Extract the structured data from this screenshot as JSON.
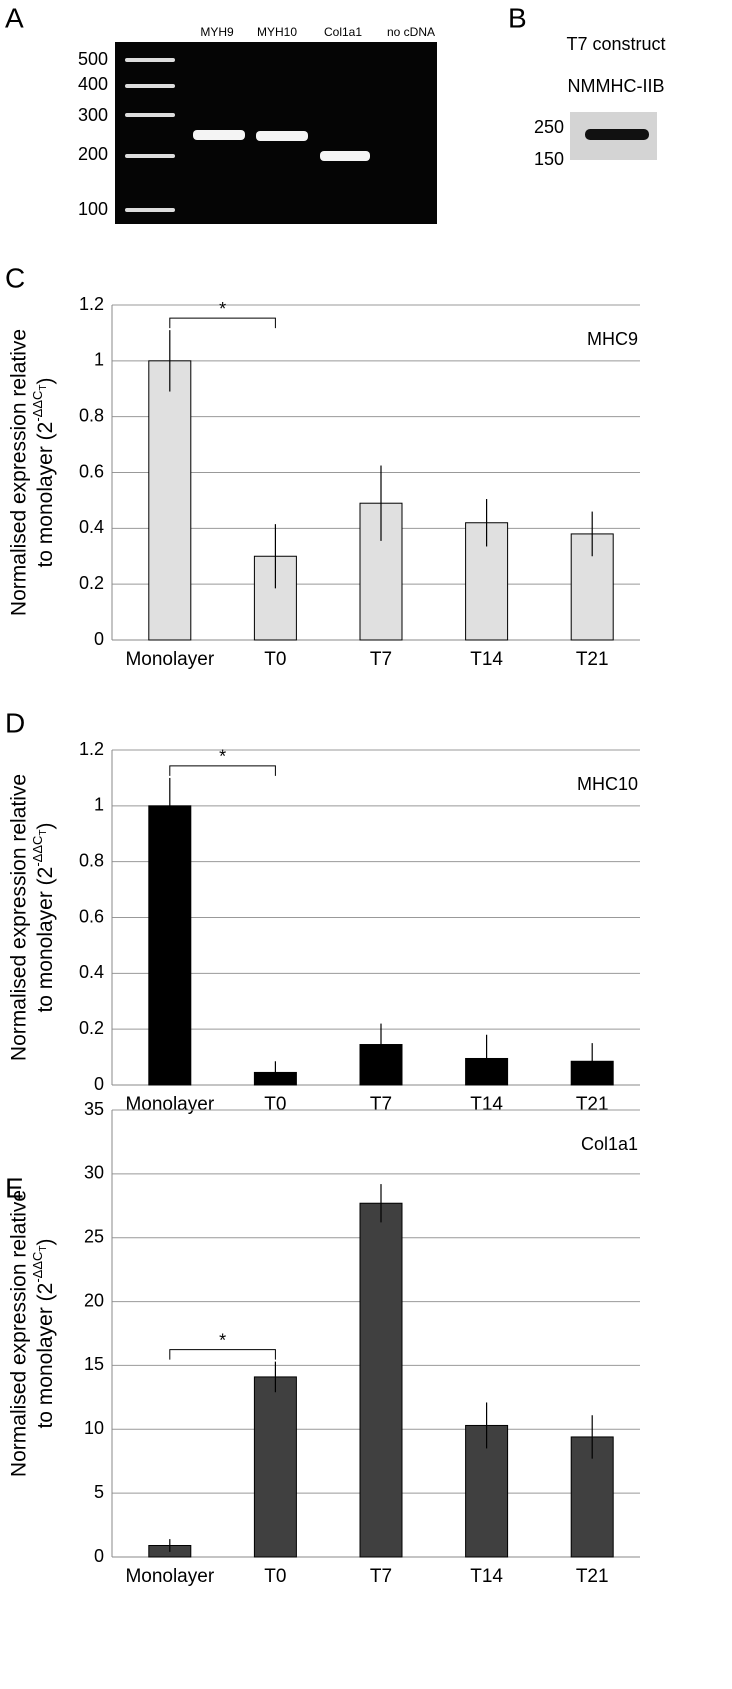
{
  "gels": {
    "a": {
      "panel_label": "A",
      "lanes": [
        "MYH9",
        "MYH10",
        "Col1a1",
        "no cDNA"
      ],
      "ladder": [
        500,
        400,
        300,
        200,
        100
      ]
    },
    "b": {
      "panel_label": "B",
      "title": "T7 construct",
      "protein": "NMMHC-IIB",
      "markers": [
        250,
        150
      ]
    }
  },
  "chart_data": [
    {
      "type": "bar",
      "panel_label": "C",
      "annotation": "MHC9",
      "significance": "*",
      "y_label": "Normalised expression relative",
      "y_label_2": "to monolayer (2",
      "y_label_sup": "-ΔΔC",
      "y_label_sub": "T",
      "y_label_end": ")",
      "categories": [
        "Monolayer",
        "T0",
        "T7",
        "T14",
        "T21"
      ],
      "values": [
        1,
        0.3,
        0.49,
        0.42,
        0.38
      ],
      "errors": [
        0.11,
        0.115,
        0.135,
        0.085,
        0.08
      ],
      "color": "#e0e0e0",
      "ylim": [
        0,
        1.2
      ],
      "yticks": [
        0,
        0.2,
        0.4,
        0.6,
        0.8,
        1,
        1.2
      ],
      "grid": true
    },
    {
      "type": "bar",
      "panel_label": "D",
      "annotation": "MHC10",
      "significance": "*",
      "y_label": "Normalised expression relative",
      "y_label_2": "to monolayer (2",
      "y_label_sup": "-ΔΔC",
      "y_label_sub": "T",
      "y_label_end": ")",
      "categories": [
        "Monolayer",
        "T0",
        "T7",
        "T14",
        "T21"
      ],
      "values": [
        1,
        0.045,
        0.145,
        0.095,
        0.085
      ],
      "errors": [
        0.1,
        0.04,
        0.075,
        0.085,
        0.065
      ],
      "color": "#000000",
      "ylim": [
        0,
        1.2
      ],
      "yticks": [
        0,
        0.2,
        0.4,
        0.6,
        0.8,
        1,
        1.2
      ],
      "grid": true
    },
    {
      "type": "bar",
      "panel_label": "E",
      "annotation": "Col1a1",
      "significance": "*",
      "y_label": "Normalised expression relative",
      "y_label_2": "to monolayer (2",
      "y_label_sup": "-ΔΔC",
      "y_label_sub": "T",
      "y_label_end": ")",
      "categories": [
        "Monolayer",
        "T0",
        "T7",
        "T14",
        "T21"
      ],
      "values": [
        0.9,
        14.1,
        27.7,
        10.3,
        9.4
      ],
      "errors": [
        0.5,
        1.2,
        1.5,
        1.8,
        1.7
      ],
      "color": "#404040",
      "ylim": [
        0,
        35
      ],
      "yticks": [
        0,
        5,
        10,
        15,
        20,
        25,
        30,
        35
      ],
      "grid": true
    }
  ]
}
